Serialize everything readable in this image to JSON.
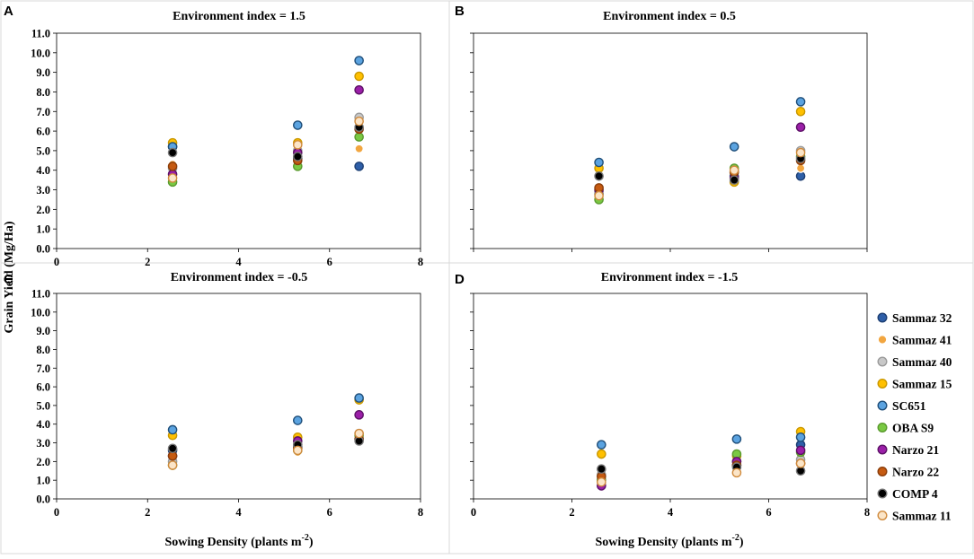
{
  "figure": {
    "ylabel": "Grain Yield (Mg/Ha)",
    "xlabel": "Sowing Density (plants m",
    "xlabel_sup": "-2",
    "xlabel_end": ")"
  },
  "legend": [
    {
      "name": "Sammaz 32",
      "fill": "#2e5fa8",
      "stroke": "#1d3f73"
    },
    {
      "name": "Sammaz 41",
      "fill": "#f2a640",
      "stroke": "#ffffff"
    },
    {
      "name": "Sammaz 40",
      "fill": "#c8c8c8",
      "stroke": "#9a9a9a"
    },
    {
      "name": "Sammaz 15",
      "fill": "#ffc000",
      "stroke": "#c99700"
    },
    {
      "name": "SC651",
      "fill": "#5ba3e0",
      "stroke": "#1f4e79"
    },
    {
      "name": "OBA S9",
      "fill": "#7ac943",
      "stroke": "#5a9a2e"
    },
    {
      "name": "Narzo 21",
      "fill": "#9b1fa8",
      "stroke": "#5c1166"
    },
    {
      "name": "Narzo 22",
      "fill": "#c55a11",
      "stroke": "#8a3d0a"
    },
    {
      "name": "COMP 4",
      "fill": "#000000",
      "stroke": "#777777"
    },
    {
      "name": "Sammaz 11",
      "fill": "#fbe5c8",
      "stroke": "#d08a3c"
    }
  ],
  "chart_data": [
    {
      "panel": "A",
      "type": "scatter",
      "title": "Environment index = 1.5",
      "xlim": [
        0,
        8
      ],
      "ylim": [
        0,
        11
      ],
      "xticks": [
        "0",
        "2",
        "4",
        "6",
        "8"
      ],
      "yticks": [
        "0.0",
        "1.0",
        "2.0",
        "3.0",
        "4.0",
        "5.0",
        "6.0",
        "7.0",
        "8.0",
        "9.0",
        "10.0",
        "11.0"
      ],
      "x": [
        2.55,
        5.3,
        6.65
      ],
      "series": [
        {
          "name": "Sammaz 32",
          "values": [
            5.2,
            4.6,
            4.2
          ]
        },
        {
          "name": "Sammaz 41",
          "values": [
            4.3,
            4.4,
            5.1
          ]
        },
        {
          "name": "Sammaz 40",
          "values": [
            4.1,
            5.0,
            6.7
          ]
        },
        {
          "name": "Sammaz 15",
          "values": [
            5.4,
            5.4,
            8.8
          ]
        },
        {
          "name": "SC651",
          "values": [
            5.2,
            6.3,
            9.6
          ]
        },
        {
          "name": "OBA S9",
          "values": [
            3.4,
            4.2,
            5.7
          ]
        },
        {
          "name": "Narzo 21",
          "values": [
            3.8,
            4.9,
            8.1
          ]
        },
        {
          "name": "Narzo 22",
          "values": [
            4.2,
            4.5,
            6.1
          ]
        },
        {
          "name": "COMP 4",
          "values": [
            4.9,
            4.7,
            6.2
          ]
        },
        {
          "name": "Sammaz 11",
          "values": [
            3.6,
            5.3,
            6.5
          ]
        }
      ]
    },
    {
      "panel": "B",
      "type": "scatter",
      "title": "Environment index = 0.5",
      "xlim": [
        0,
        8
      ],
      "ylim": [
        0,
        11
      ],
      "xticks": [],
      "yticks": [],
      "x": [
        2.55,
        5.3,
        6.65
      ],
      "series": [
        {
          "name": "Sammaz 32",
          "values": [
            2.8,
            3.7,
            3.7
          ]
        },
        {
          "name": "Sammaz 41",
          "values": [
            2.9,
            3.5,
            4.1
          ]
        },
        {
          "name": "Sammaz 40",
          "values": [
            2.9,
            3.9,
            5.0
          ]
        },
        {
          "name": "Sammaz 15",
          "values": [
            4.1,
            3.4,
            7.0
          ]
        },
        {
          "name": "SC651",
          "values": [
            4.4,
            5.2,
            7.5
          ]
        },
        {
          "name": "OBA S9",
          "values": [
            2.5,
            4.1,
            4.7
          ]
        },
        {
          "name": "Narzo 21",
          "values": [
            3.0,
            3.6,
            6.2
          ]
        },
        {
          "name": "Narzo 22",
          "values": [
            3.1,
            3.9,
            4.5
          ]
        },
        {
          "name": "COMP 4",
          "values": [
            3.7,
            3.5,
            4.6
          ]
        },
        {
          "name": "Sammaz 11",
          "values": [
            2.7,
            4.0,
            4.9
          ]
        }
      ]
    },
    {
      "panel": "C",
      "type": "scatter",
      "title": "Environment index = -0.5",
      "xlim": [
        0,
        8
      ],
      "ylim": [
        0,
        11
      ],
      "xticks": [
        "0",
        "2",
        "4",
        "6",
        "8"
      ],
      "yticks": [
        "0.0",
        "1.0",
        "2.0",
        "3.0",
        "4.0",
        "5.0",
        "6.0",
        "7.0",
        "8.0",
        "9.0",
        "10.0",
        "11.0"
      ],
      "x": [
        2.55,
        5.3,
        6.65
      ],
      "series": [
        {
          "name": "Sammaz 32",
          "values": [
            2.6,
            2.8,
            3.2
          ]
        },
        {
          "name": "Sammaz 41",
          "values": [
            1.9,
            2.5,
            3.3
          ]
        },
        {
          "name": "Sammaz 40",
          "values": [
            2.0,
            2.9,
            3.5
          ]
        },
        {
          "name": "Sammaz 15",
          "values": [
            3.4,
            3.3,
            5.3
          ]
        },
        {
          "name": "SC651",
          "values": [
            3.7,
            4.2,
            5.4
          ]
        },
        {
          "name": "OBA S9",
          "values": [
            1.8,
            2.6,
            3.4
          ]
        },
        {
          "name": "Narzo 21",
          "values": [
            2.3,
            3.1,
            4.5
          ]
        },
        {
          "name": "Narzo 22",
          "values": [
            2.3,
            2.7,
            3.2
          ]
        },
        {
          "name": "COMP 4",
          "values": [
            2.7,
            2.9,
            3.1
          ]
        },
        {
          "name": "Sammaz 11",
          "values": [
            1.8,
            2.6,
            3.5
          ]
        }
      ]
    },
    {
      "panel": "D",
      "type": "scatter",
      "title": "Environment index = -1.5",
      "xlim": [
        0,
        8
      ],
      "ylim": [
        0,
        11
      ],
      "xticks": [
        "0",
        "2",
        "4",
        "6",
        "8"
      ],
      "yticks": [],
      "x": [
        2.6,
        5.35,
        6.65
      ],
      "series": [
        {
          "name": "Sammaz 32",
          "values": [
            1.0,
            1.8,
            2.9
          ]
        },
        {
          "name": "Sammaz 41",
          "values": [
            1.2,
            1.5,
            2.3
          ]
        },
        {
          "name": "Sammaz 40",
          "values": [
            1.3,
            2.0,
            2.1
          ]
        },
        {
          "name": "Sammaz 15",
          "values": [
            2.4,
            2.3,
            3.6
          ]
        },
        {
          "name": "SC651",
          "values": [
            2.9,
            3.2,
            3.3
          ]
        },
        {
          "name": "OBA S9",
          "values": [
            1.0,
            2.4,
            2.5
          ]
        },
        {
          "name": "Narzo 21",
          "values": [
            0.7,
            2.0,
            2.6
          ]
        },
        {
          "name": "Narzo 22",
          "values": [
            1.2,
            1.8,
            1.9
          ]
        },
        {
          "name": "COMP 4",
          "values": [
            1.6,
            1.7,
            1.5
          ]
        },
        {
          "name": "Sammaz 11",
          "values": [
            0.9,
            1.4,
            1.9
          ]
        }
      ]
    }
  ]
}
